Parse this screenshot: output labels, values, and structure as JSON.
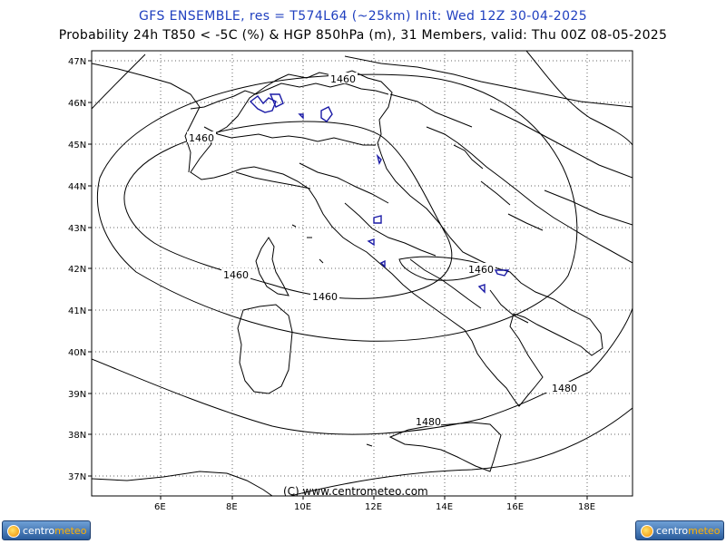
{
  "header": {
    "title_line1": "GFS ENSEMBLE, res = T574L64 (~25km)   Init: Wed 12Z 30-04-2025",
    "title_line2": "Probability 24h T850 < -5C (%) & HGP 850hPa (m), 31 Members, valid: Thu 00Z 08-05-2025"
  },
  "map": {
    "lat_ticks": [
      "47N",
      "46N",
      "45N",
      "44N",
      "43N",
      "42N",
      "41N",
      "40N",
      "39N",
      "38N",
      "37N"
    ],
    "lon_ticks": [
      "6E",
      "8E",
      "10E",
      "12E",
      "14E",
      "16E",
      "18E"
    ],
    "contour_labels": [
      "1460",
      "1460",
      "1460",
      "1460",
      "1460",
      "1480",
      "1480"
    ],
    "copyright": "(C) www.centrometeo.com",
    "colors": {
      "coast": "#000000",
      "contour": "#000000",
      "probability": "#1a1aa6",
      "grid": "#555555",
      "title": "#1f3fbf"
    }
  },
  "footer": {
    "logo_left_a": "centro",
    "logo_left_b": "meteo",
    "logo_right_a": "centro",
    "logo_right_b": "meteo"
  }
}
